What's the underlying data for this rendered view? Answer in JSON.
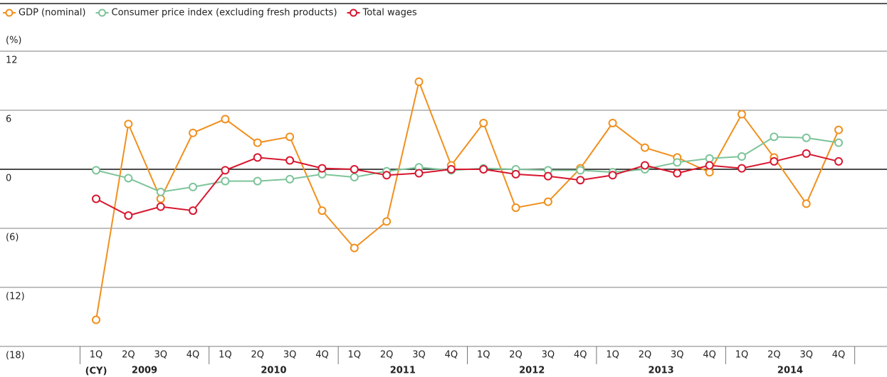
{
  "chart_data": {
    "type": "line",
    "y_label": "(%)",
    "x_label": "(CY)",
    "categories": [
      "1Q",
      "2Q",
      "3Q",
      "4Q",
      "1Q",
      "2Q",
      "3Q",
      "4Q",
      "1Q",
      "2Q",
      "3Q",
      "4Q",
      "1Q",
      "2Q",
      "3Q",
      "4Q",
      "1Q",
      "2Q",
      "3Q",
      "4Q",
      "1Q",
      "2Q",
      "3Q",
      "4Q"
    ],
    "x_groups": [
      "2009",
      "2010",
      "2011",
      "2012",
      "2013",
      "2014"
    ],
    "series": [
      {
        "name": "GDP (nominal)",
        "color": "#f0901e",
        "values": [
          -15.3,
          4.6,
          -3.0,
          3.7,
          5.1,
          2.7,
          3.3,
          -4.2,
          -8.0,
          -5.3,
          8.9,
          0.4,
          4.7,
          -3.9,
          -3.3,
          0.1,
          4.7,
          2.2,
          1.2,
          -0.3,
          5.6,
          1.2,
          -3.5,
          4.0
        ]
      },
      {
        "name": "Consumer price index (excluding fresh products)",
        "color": "#7dc49a",
        "values": [
          -0.1,
          -0.9,
          -2.3,
          -1.8,
          -1.2,
          -1.2,
          -1.0,
          -0.5,
          -0.8,
          -0.2,
          0.2,
          -0.1,
          0.1,
          0.0,
          -0.1,
          -0.1,
          -0.3,
          0.0,
          0.7,
          1.1,
          1.3,
          3.3,
          3.2,
          2.7
        ]
      },
      {
        "name": "Total wages",
        "color": "#d7172f",
        "values": [
          -3.0,
          -4.7,
          -3.8,
          -4.2,
          -0.1,
          1.2,
          0.9,
          0.1,
          0.0,
          -0.6,
          -0.4,
          0.0,
          0.0,
          -0.5,
          -0.7,
          -1.1,
          -0.6,
          0.4,
          -0.4,
          0.4,
          0.1,
          0.8,
          1.6,
          0.8
        ]
      }
    ],
    "ylim": [
      -18,
      12
    ],
    "yticks": [
      {
        "value": -18,
        "label": "(18)"
      },
      {
        "value": -12,
        "label": "(12)"
      },
      {
        "value": -6,
        "label": "(6)"
      },
      0,
      6,
      12
    ],
    "grid": true,
    "legend": "top-left"
  }
}
